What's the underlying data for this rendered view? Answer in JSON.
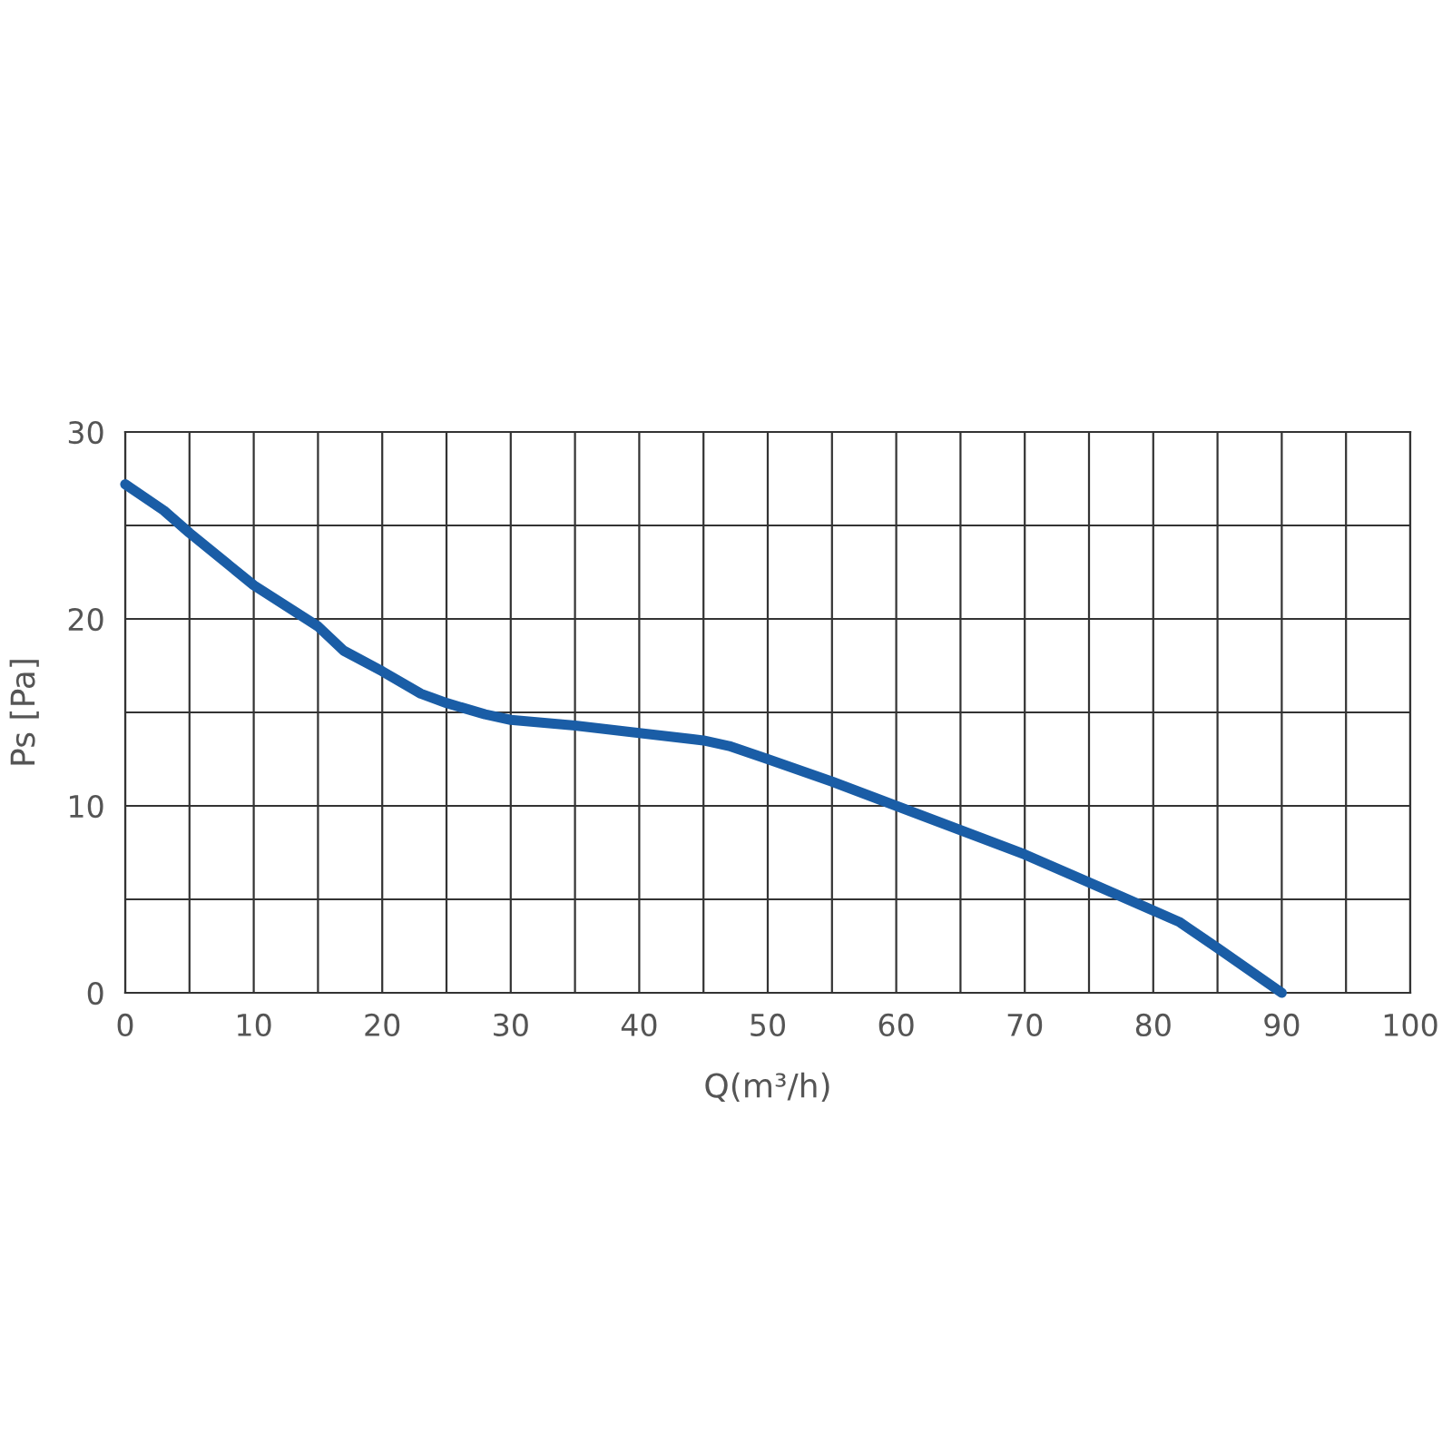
{
  "chart_data": {
    "type": "line",
    "xlabel": "Q(m³/h)",
    "ylabel": "Ps [Pa]",
    "x": [
      0,
      3,
      5,
      10,
      15,
      17,
      20,
      23,
      25,
      28,
      30,
      35,
      40,
      45,
      47,
      50,
      55,
      60,
      65,
      70,
      75,
      80,
      82,
      85,
      90
    ],
    "series": [
      {
        "color": "#1a5da6",
        "values": [
          27.2,
          25.8,
          24.6,
          21.8,
          19.6,
          18.3,
          17.2,
          16.0,
          15.5,
          14.9,
          14.6,
          14.3,
          13.9,
          13.5,
          13.2,
          12.5,
          11.3,
          10.0,
          8.7,
          7.4,
          5.9,
          4.4,
          3.8,
          2.4,
          0
        ]
      }
    ],
    "xlim": [
      0,
      100
    ],
    "ylim": [
      0,
      30
    ],
    "xticks": [
      0,
      {
        "value": 5,
        "label": null
      },
      10,
      {
        "value": 15,
        "label": null
      },
      20,
      {
        "value": 25,
        "label": null
      },
      30,
      {
        "value": 35,
        "label": null
      },
      40,
      {
        "value": 45,
        "label": null
      },
      50,
      {
        "value": 55,
        "label": null
      },
      60,
      {
        "value": 65,
        "label": null
      },
      70,
      {
        "value": 75,
        "label": null
      },
      80,
      {
        "value": 85,
        "label": null
      },
      90,
      {
        "value": 95,
        "label": null
      },
      100
    ],
    "yticks": [
      0,
      {
        "value": 5,
        "label": null
      },
      10,
      {
        "value": 15,
        "label": null
      },
      20,
      {
        "value": 25,
        "label": null
      },
      30
    ],
    "grid": true,
    "marker": "none",
    "line_style": "solid"
  }
}
